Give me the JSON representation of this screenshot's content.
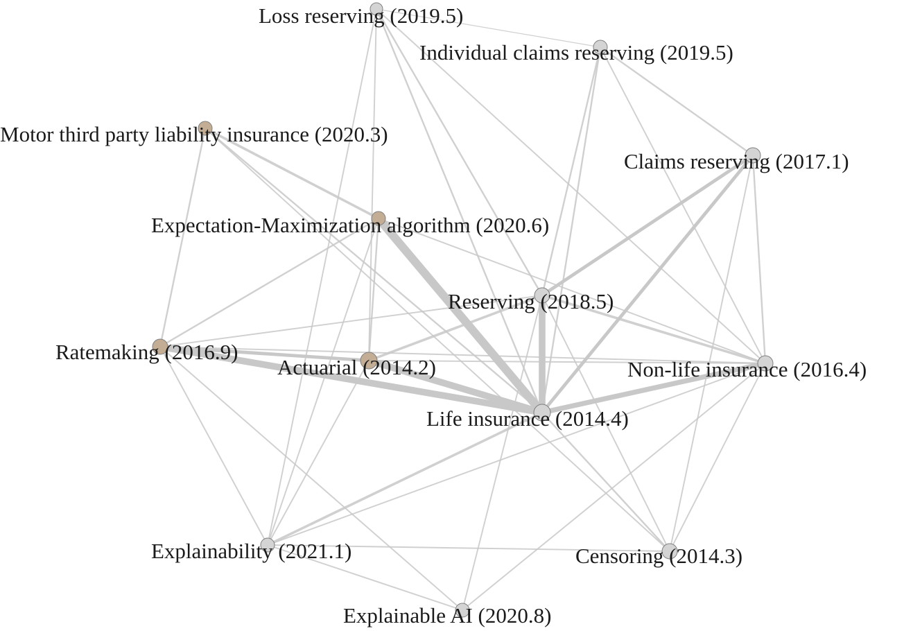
{
  "colors": {
    "gray_node": "#d4d4d4",
    "brown_node": "#c4ad95",
    "edge": "#c8c8c8",
    "text": "#1a1a1a"
  },
  "nodes": [
    {
      "id": "loss_reserving",
      "label": "Loss reserving (2019.5)",
      "color": "gray"
    },
    {
      "id": "individual_claims_reserving",
      "label": "Individual claims reserving (2019.5)",
      "color": "gray"
    },
    {
      "id": "motor_tpl",
      "label": "Motor third party liability insurance (2020.3)",
      "color": "brown"
    },
    {
      "id": "claims_reserving",
      "label": "Claims reserving (2017.1)",
      "color": "gray"
    },
    {
      "id": "em_algorithm",
      "label": "Expectation-Maximization algorithm (2020.6)",
      "color": "brown"
    },
    {
      "id": "reserving",
      "label": "Reserving (2018.5)",
      "color": "gray"
    },
    {
      "id": "ratemaking",
      "label": "Ratemaking (2016.9)",
      "color": "brown"
    },
    {
      "id": "actuarial",
      "label": "Actuarial (2014.2)",
      "color": "brown"
    },
    {
      "id": "non_life_insurance",
      "label": "Non-life insurance (2016.4)",
      "color": "gray"
    },
    {
      "id": "life_insurance",
      "label": "Life insurance (2014.4)",
      "color": "gray"
    },
    {
      "id": "explainability",
      "label": "Explainability (2021.1)",
      "color": "gray"
    },
    {
      "id": "censoring",
      "label": "Censoring (2014.3)",
      "color": "gray"
    },
    {
      "id": "explainable_ai",
      "label": "Explainable AI (2020.8)",
      "color": "gray"
    }
  ],
  "edges": [
    {
      "source": "em_algorithm",
      "target": "life_insurance",
      "weight": 5
    },
    {
      "source": "reserving",
      "target": "life_insurance",
      "weight": 4
    },
    {
      "source": "ratemaking",
      "target": "life_insurance",
      "weight": 4
    },
    {
      "source": "actuarial",
      "target": "life_insurance",
      "weight": 4
    },
    {
      "source": "non_life_insurance",
      "target": "life_insurance",
      "weight": 3
    },
    {
      "source": "claims_reserving",
      "target": "life_insurance",
      "weight": 2
    },
    {
      "source": "ratemaking",
      "target": "actuarial",
      "weight": 2
    },
    {
      "source": "claims_reserving",
      "target": "reserving",
      "weight": 2
    },
    {
      "source": "actuarial",
      "target": "reserving",
      "weight": 1.5
    },
    {
      "source": "explainability",
      "target": "life_insurance",
      "weight": 1.5
    },
    {
      "source": "ratemaking",
      "target": "em_algorithm",
      "weight": 1
    },
    {
      "source": "motor_tpl",
      "target": "em_algorithm",
      "weight": 1.5
    },
    {
      "source": "motor_tpl",
      "target": "ratemaking",
      "weight": 1
    },
    {
      "source": "motor_tpl",
      "target": "life_insurance",
      "weight": 1
    },
    {
      "source": "motor_tpl",
      "target": "censoring",
      "weight": 0.8
    },
    {
      "source": "loss_reserving",
      "target": "life_insurance",
      "weight": 1
    },
    {
      "source": "loss_reserving",
      "target": "reserving",
      "weight": 1
    },
    {
      "source": "loss_reserving",
      "target": "non_life_insurance",
      "weight": 0.8
    },
    {
      "source": "loss_reserving",
      "target": "actuarial",
      "weight": 0.8
    },
    {
      "source": "loss_reserving",
      "target": "explainability",
      "weight": 0.8
    },
    {
      "source": "individual_claims_reserving",
      "target": "life_insurance",
      "weight": 1
    },
    {
      "source": "individual_claims_reserving",
      "target": "reserving",
      "weight": 1
    },
    {
      "source": "individual_claims_reserving",
      "target": "claims_reserving",
      "weight": 1
    },
    {
      "source": "individual_claims_reserving",
      "target": "non_life_insurance",
      "weight": 0.8
    },
    {
      "source": "claims_reserving",
      "target": "non_life_insurance",
      "weight": 1
    },
    {
      "source": "claims_reserving",
      "target": "censoring",
      "weight": 0.8
    },
    {
      "source": "em_algorithm",
      "target": "actuarial",
      "weight": 1
    },
    {
      "source": "em_algorithm",
      "target": "non_life_insurance",
      "weight": 0.8
    },
    {
      "source": "em_algorithm",
      "target": "explainability",
      "weight": 0.8
    },
    {
      "source": "reserving",
      "target": "non_life_insurance",
      "weight": 1.5
    },
    {
      "source": "reserving",
      "target": "ratemaking",
      "weight": 0.8
    },
    {
      "source": "reserving",
      "target": "censoring",
      "weight": 0.8
    },
    {
      "source": "ratemaking",
      "target": "explainability",
      "weight": 0.8
    },
    {
      "source": "ratemaking",
      "target": "non_life_insurance",
      "weight": 0.8
    },
    {
      "source": "actuarial",
      "target": "explainability",
      "weight": 0.8
    },
    {
      "source": "actuarial",
      "target": "non_life_insurance",
      "weight": 0.8
    },
    {
      "source": "non_life_insurance",
      "target": "explainability",
      "weight": 0.8
    },
    {
      "source": "non_life_insurance",
      "target": "censoring",
      "weight": 0.8
    },
    {
      "source": "life_insurance",
      "target": "censoring",
      "weight": 1
    },
    {
      "source": "explainable_ai",
      "target": "non_life_insurance",
      "weight": 0.8
    },
    {
      "source": "explainable_ai",
      "target": "explainability",
      "weight": 0.8
    },
    {
      "source": "explainable_ai",
      "target": "reserving",
      "weight": 0.8
    },
    {
      "source": "explainable_ai",
      "target": "ratemaking",
      "weight": 0.8
    },
    {
      "source": "explainability",
      "target": "censoring",
      "weight": 0.8
    },
    {
      "source": "loss_reserving",
      "target": "individual_claims_reserving",
      "weight": 0.5
    }
  ]
}
